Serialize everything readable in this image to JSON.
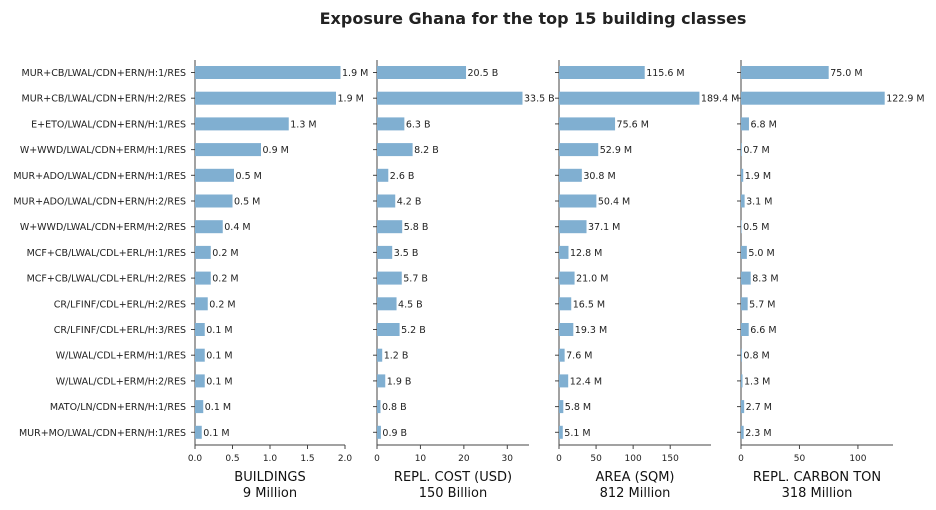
{
  "title": "Exposure Ghana for the top 15 building classes",
  "bar_color": "#80afd1",
  "chart_data": [
    {
      "type": "bar",
      "orientation": "horizontal",
      "xlabel": "BUILDINGS",
      "total": "9 Million",
      "xlim": [
        0,
        2.0
      ],
      "ticks": [
        "0.0",
        "0.5",
        "1.0",
        "1.5",
        "2.0"
      ],
      "tick_values": [
        0,
        0.5,
        1.0,
        1.5,
        2.0
      ],
      "values": [
        1.94,
        1.88,
        1.25,
        0.88,
        0.52,
        0.5,
        0.37,
        0.21,
        0.21,
        0.17,
        0.13,
        0.13,
        0.13,
        0.11,
        0.09
      ],
      "value_labels": [
        "1.9 M",
        "1.9 M",
        "1.3 M",
        "0.9 M",
        "0.5 M",
        "0.5 M",
        "0.4 M",
        "0.2 M",
        "0.2 M",
        "0.2 M",
        "0.1 M",
        "0.1 M",
        "0.1 M",
        "0.1 M",
        "0.1 M"
      ]
    },
    {
      "type": "bar",
      "orientation": "horizontal",
      "xlabel": "REPL. COST (USD)",
      "total": "150 Billion",
      "xlim": [
        0,
        35
      ],
      "ticks": [
        "0",
        "10",
        "20",
        "30"
      ],
      "tick_values": [
        0,
        10,
        20,
        30
      ],
      "values": [
        20.5,
        33.5,
        6.3,
        8.2,
        2.6,
        4.2,
        5.8,
        3.5,
        5.7,
        4.5,
        5.2,
        1.2,
        1.9,
        0.8,
        0.9
      ],
      "value_labels": [
        "20.5 B",
        "33.5 B",
        "6.3 B",
        "8.2 B",
        "2.6 B",
        "4.2 B",
        "5.8 B",
        "3.5 B",
        "5.7 B",
        "4.5 B",
        "5.2 B",
        "1.2 B",
        "1.9 B",
        "0.8 B",
        "0.9 B"
      ]
    },
    {
      "type": "bar",
      "orientation": "horizontal",
      "xlabel": "AREA (SQM)",
      "total": "812 Million",
      "xlim": [
        0,
        205
      ],
      "ticks": [
        "0",
        "50",
        "100",
        "150"
      ],
      "tick_values": [
        0,
        50,
        100,
        150
      ],
      "values": [
        115.6,
        189.4,
        75.6,
        52.9,
        30.8,
        50.4,
        37.1,
        12.8,
        21.0,
        16.5,
        19.3,
        7.6,
        12.4,
        5.8,
        5.1
      ],
      "value_labels": [
        "115.6 M",
        "189.4 M",
        "75.6 M",
        "52.9 M",
        "30.8 M",
        "50.4 M",
        "37.1 M",
        "12.8 M",
        "21.0 M",
        "16.5 M",
        "19.3 M",
        "7.6 M",
        "12.4 M",
        "5.8 M",
        "5.1 M"
      ]
    },
    {
      "type": "bar",
      "orientation": "horizontal",
      "xlabel": "REPL. CARBON TON",
      "total": "318 Million",
      "xlim": [
        0,
        130
      ],
      "ticks": [
        "0",
        "50",
        "100"
      ],
      "tick_values": [
        0,
        50,
        100
      ],
      "values": [
        75.0,
        122.9,
        6.8,
        0.7,
        1.9,
        3.1,
        0.5,
        5.0,
        8.3,
        5.7,
        6.6,
        0.8,
        1.3,
        2.7,
        2.3
      ],
      "value_labels": [
        "75.0 M",
        "122.9 M",
        "6.8 M",
        "0.7 M",
        "1.9 M",
        "3.1 M",
        "0.5 M",
        "5.0 M",
        "8.3 M",
        "5.7 M",
        "6.6 M",
        "0.8 M",
        "1.3 M",
        "2.7 M",
        "2.3 M"
      ]
    }
  ],
  "categories": [
    "MUR+CB/LWAL/CDN+ERN/H:1/RES",
    "MUR+CB/LWAL/CDN+ERN/H:2/RES",
    "E+ETO/LWAL/CDN+ERN/H:1/RES",
    "W+WWD/LWAL/CDN+ERM/H:1/RES",
    "MUR+ADO/LWAL/CDN+ERN/H:1/RES",
    "MUR+ADO/LWAL/CDN+ERN/H:2/RES",
    "W+WWD/LWAL/CDN+ERM/H:2/RES",
    "MCF+CB/LWAL/CDL+ERL/H:1/RES",
    "MCF+CB/LWAL/CDL+ERL/H:2/RES",
    "CR/LFINF/CDL+ERL/H:2/RES",
    "CR/LFINF/CDL+ERL/H:3/RES",
    "W/LWAL/CDL+ERM/H:1/RES",
    "W/LWAL/CDL+ERM/H:2/RES",
    "MATO/LN/CDN+ERN/H:1/RES",
    "MUR+MO/LWAL/CDN+ERN/H:1/RES"
  ]
}
